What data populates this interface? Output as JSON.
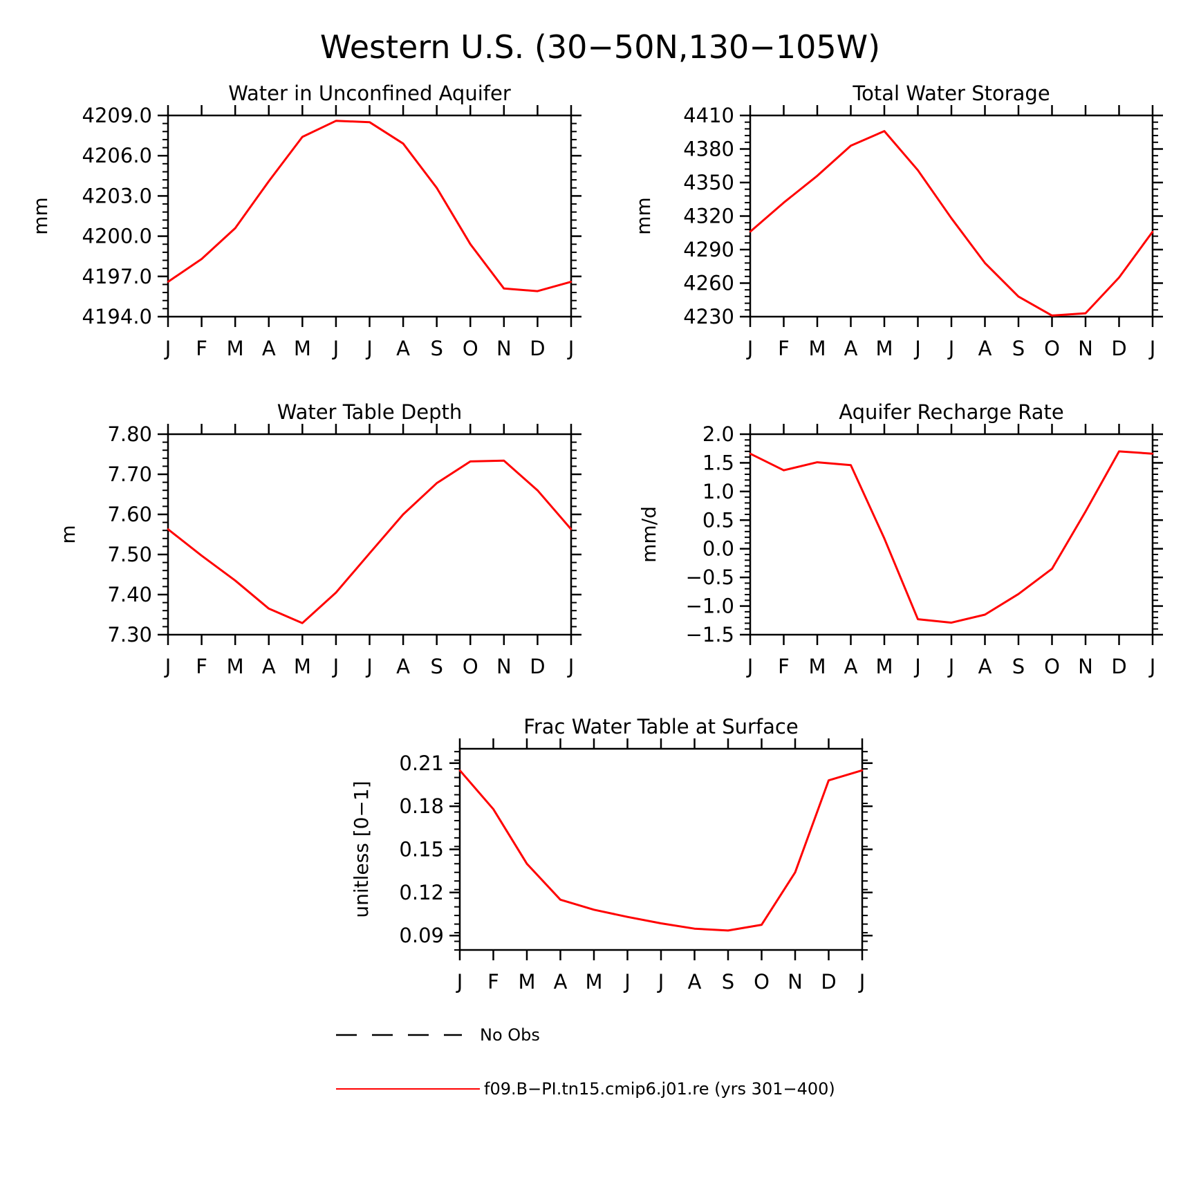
{
  "figure": {
    "title": "Western U.S. (30−50N,130−105W)"
  },
  "colors": {
    "series_line": "#ff0000",
    "axes": "#000000",
    "background": "#ffffff"
  },
  "legend": {
    "entries": [
      {
        "label": "No Obs",
        "style": "dashed",
        "color": "#000000"
      },
      {
        "label": "f09.B−PI.tn15.cmip6.j01.re (yrs 301−400)",
        "style": "solid",
        "color": "#ff0000"
      }
    ]
  },
  "chart_data": [
    {
      "id": "unconfined-aquifer",
      "type": "line",
      "title": "Water in Unconfined Aquifer",
      "ylabel": "mm",
      "xlabel": "",
      "categories": [
        "J",
        "F",
        "M",
        "A",
        "M",
        "J",
        "J",
        "A",
        "S",
        "O",
        "N",
        "D",
        "J"
      ],
      "ylim": [
        4194.0,
        4209.0
      ],
      "yticks": [
        4194.0,
        4197.0,
        4200.0,
        4203.0,
        4206.0,
        4209.0
      ],
      "ytick_labels": [
        "4194.0",
        "4197.0",
        "4200.0",
        "4203.0",
        "4206.0",
        "4209.0"
      ],
      "series": [
        {
          "values": [
            4196.6,
            4198.3,
            4200.6,
            4204.1,
            4207.4,
            4208.6,
            4208.5,
            4206.9,
            4203.6,
            4199.4,
            4196.1,
            4195.9,
            4196.6
          ]
        }
      ]
    },
    {
      "id": "total-water-storage",
      "type": "line",
      "title": "Total Water Storage",
      "ylabel": "mm",
      "xlabel": "",
      "categories": [
        "J",
        "F",
        "M",
        "A",
        "M",
        "J",
        "J",
        "A",
        "S",
        "O",
        "N",
        "D",
        "J"
      ],
      "ylim": [
        4230,
        4410
      ],
      "yticks": [
        4230,
        4260,
        4290,
        4320,
        4350,
        4380,
        4410
      ],
      "ytick_labels": [
        "4230",
        "4260",
        "4290",
        "4320",
        "4350",
        "4380",
        "4410"
      ],
      "series": [
        {
          "values": [
            4306,
            4332,
            4356,
            4383,
            4396,
            4361,
            4318,
            4278,
            4248,
            4231,
            4233,
            4265,
            4306
          ]
        }
      ]
    },
    {
      "id": "water-table-depth",
      "type": "line",
      "title": "Water Table Depth",
      "ylabel": "m",
      "xlabel": "",
      "categories": [
        "J",
        "F",
        "M",
        "A",
        "M",
        "J",
        "J",
        "A",
        "S",
        "O",
        "N",
        "D",
        "J"
      ],
      "ylim": [
        7.3,
        7.8
      ],
      "yticks": [
        7.3,
        7.4,
        7.5,
        7.6,
        7.7,
        7.8
      ],
      "ytick_labels": [
        "7.30",
        "7.40",
        "7.50",
        "7.60",
        "7.70",
        "7.80"
      ],
      "series": [
        {
          "values": [
            7.563,
            7.497,
            7.435,
            7.365,
            7.329,
            7.405,
            7.503,
            7.6,
            7.678,
            7.732,
            7.734,
            7.66,
            7.563
          ]
        }
      ]
    },
    {
      "id": "aquifer-recharge-rate",
      "type": "line",
      "title": "Aquifer Recharge Rate",
      "ylabel": "mm/d",
      "xlabel": "",
      "categories": [
        "J",
        "F",
        "M",
        "A",
        "M",
        "J",
        "J",
        "A",
        "S",
        "O",
        "N",
        "D",
        "J"
      ],
      "ylim": [
        -1.5,
        2.0
      ],
      "yticks": [
        -1.5,
        -1.0,
        -0.5,
        0.0,
        0.5,
        1.0,
        1.5,
        2.0
      ],
      "ytick_labels": [
        "−1.5",
        "−1.0",
        "−0.5",
        "0.0",
        "0.5",
        "1.0",
        "1.5",
        "2.0"
      ],
      "series": [
        {
          "values": [
            1.66,
            1.37,
            1.51,
            1.46,
            0.18,
            -1.23,
            -1.29,
            -1.15,
            -0.79,
            -0.35,
            0.65,
            1.7,
            1.66
          ]
        }
      ]
    },
    {
      "id": "frac-water-table",
      "type": "line",
      "title": "Frac Water Table at Surface",
      "ylabel": "unitless [0−1]",
      "xlabel": "",
      "categories": [
        "J",
        "F",
        "M",
        "A",
        "M",
        "J",
        "J",
        "A",
        "S",
        "O",
        "N",
        "D",
        "J"
      ],
      "ylim": [
        0.08,
        0.22
      ],
      "yticks": [
        0.09,
        0.12,
        0.15,
        0.18,
        0.21
      ],
      "ytick_labels": [
        "0.09",
        "0.12",
        "0.15",
        "0.18",
        "0.21"
      ],
      "series": [
        {
          "values": [
            0.205,
            0.178,
            0.14,
            0.115,
            0.108,
            0.103,
            0.0985,
            0.0948,
            0.0935,
            0.0975,
            0.134,
            0.198,
            0.205
          ]
        }
      ]
    }
  ]
}
